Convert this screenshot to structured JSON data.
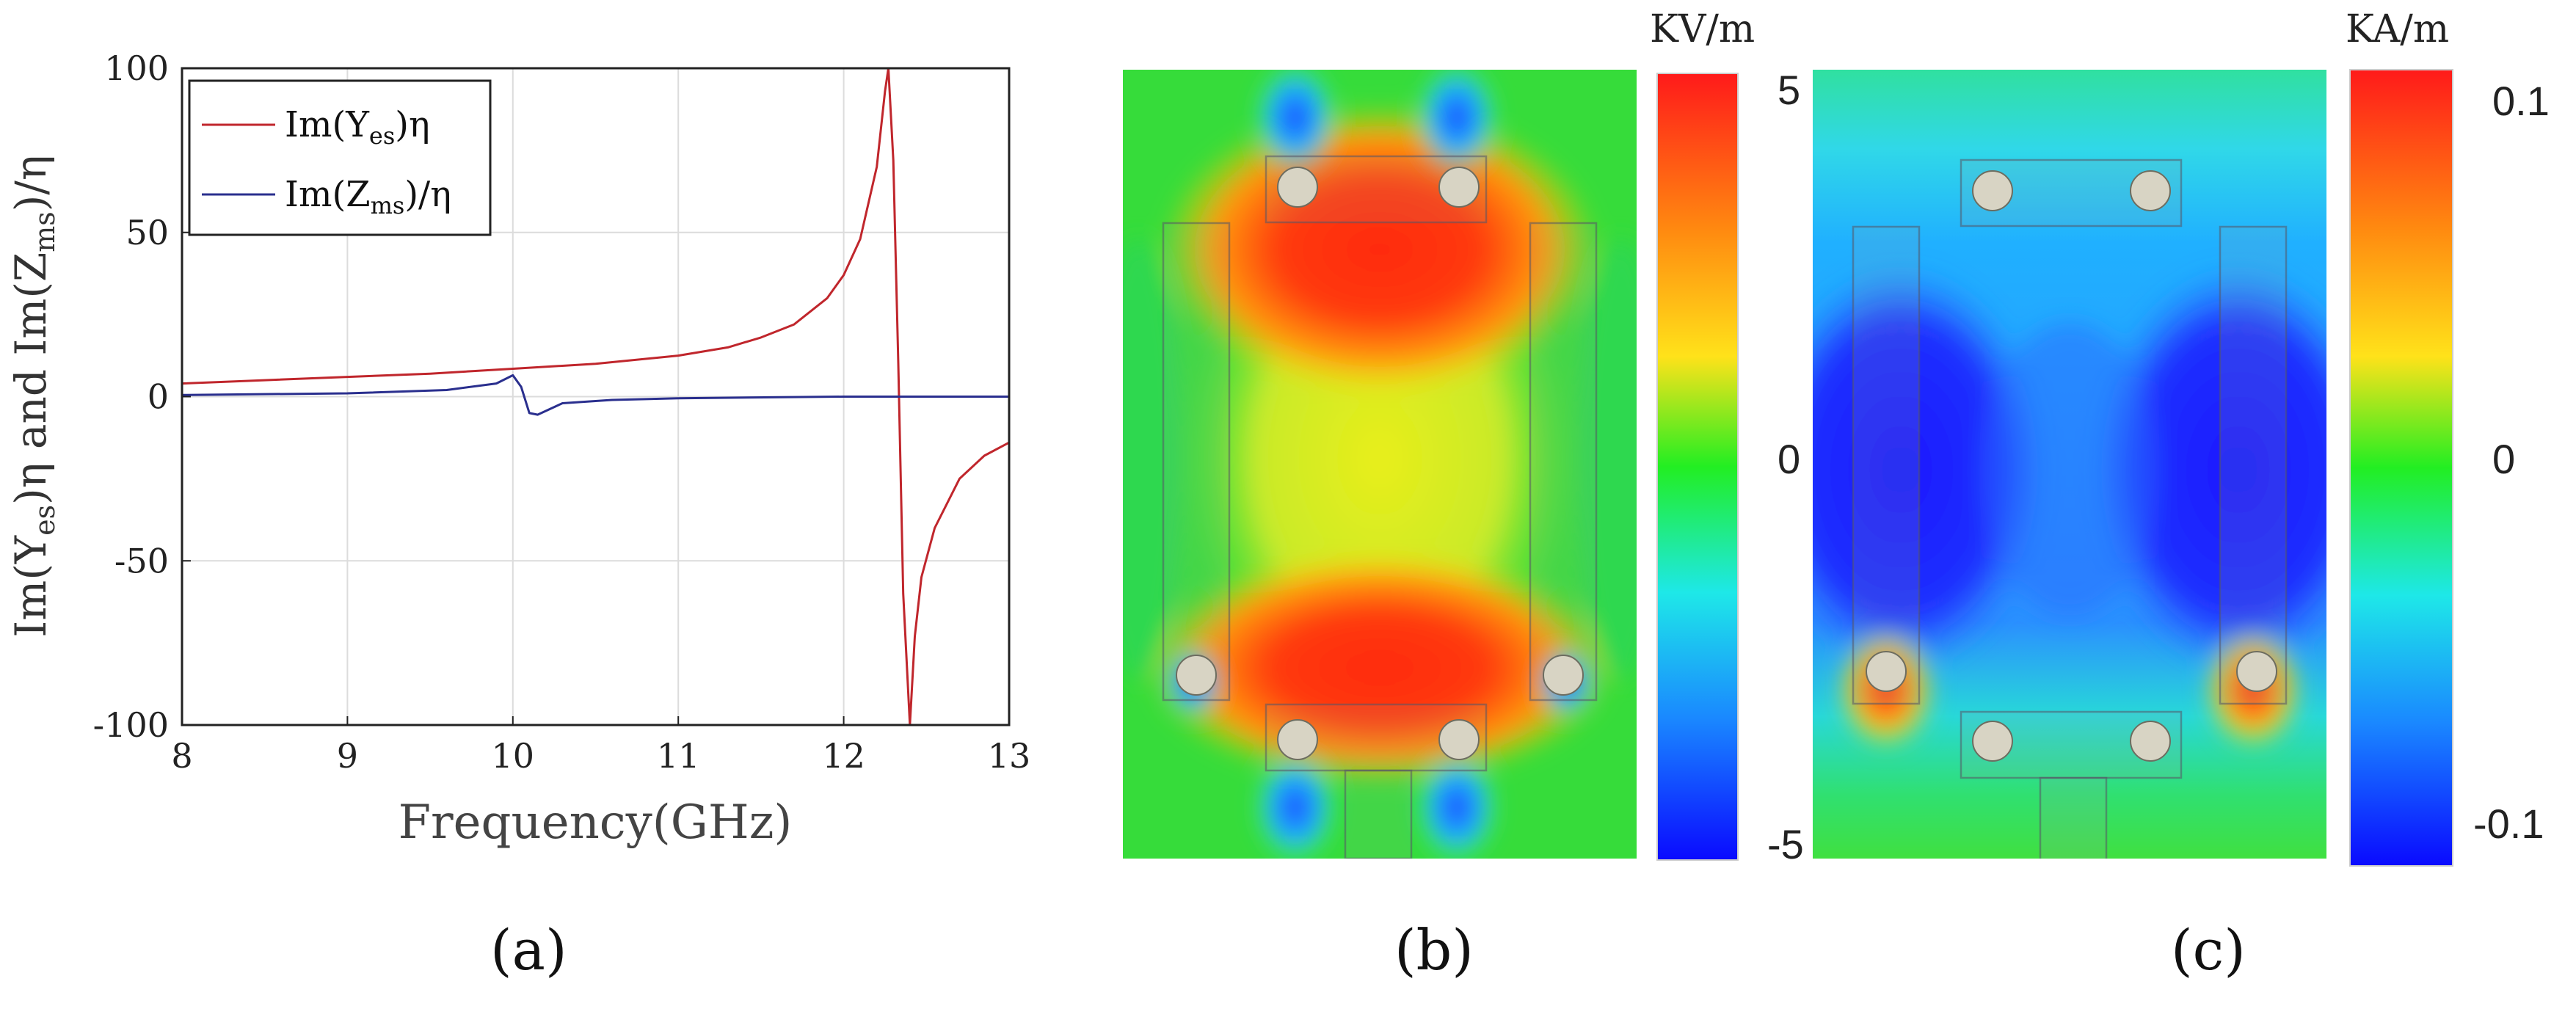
{
  "chart_data": [
    {
      "panel": "a",
      "type": "line",
      "title": "",
      "xlabel": "Frequency(GHz)",
      "ylabel": {
        "a": "Im(Y",
        "a_sub": "es",
        "b": ")η and Im(Z",
        "b_sub": "ms",
        "c": ")/η"
      },
      "xlim": [
        8,
        13
      ],
      "ylim": [
        -100,
        100
      ],
      "xticks": [
        "8",
        "9",
        "10",
        "11",
        "12",
        "13"
      ],
      "yticks": [
        "100",
        "50",
        "0",
        "-50",
        "-100"
      ],
      "xtick_values": [
        8,
        9,
        10,
        11,
        12,
        13
      ],
      "ytick_values": [
        100,
        50,
        0,
        -50,
        -100
      ],
      "grid": true,
      "legend_position": "top-left",
      "series": [
        {
          "name": "Im(Y_es)η",
          "legend": {
            "pre": "Im(Y",
            "sub": "es",
            "post": ")η"
          },
          "color": "#c0262c",
          "x": [
            8,
            8.5,
            9,
            9.5,
            10,
            10.5,
            11,
            11.3,
            11.5,
            11.7,
            11.9,
            12.0,
            12.1,
            12.2,
            12.25,
            12.27,
            12.3,
            12.33,
            12.36,
            12.4,
            12.43,
            12.47,
            12.55,
            12.7,
            12.85,
            13
          ],
          "values": [
            4,
            5,
            6,
            7,
            8.5,
            10,
            12.5,
            15,
            18,
            22,
            30,
            37,
            48,
            70,
            93,
            100,
            72,
            10,
            -60,
            -100,
            -73,
            -55,
            -40,
            -25,
            -18,
            -14
          ]
        },
        {
          "name": "Im(Z_ms)/η",
          "legend": {
            "pre": "Im(Z",
            "sub": "ms",
            "post": ")/η"
          },
          "color": "#2a2f8e",
          "x": [
            8,
            9,
            9.6,
            9.9,
            10.0,
            10.05,
            10.1,
            10.15,
            10.3,
            10.6,
            11,
            12,
            13
          ],
          "values": [
            0.5,
            1,
            2,
            4,
            6.5,
            3,
            -5,
            -5.5,
            -2,
            -1,
            -0.5,
            0,
            0
          ]
        }
      ]
    },
    {
      "panel": "b",
      "type": "heatmap",
      "quantity": "electric field",
      "colorbar": {
        "unit": "KV/m",
        "max": "5",
        "mid": "0",
        "min": "-5",
        "values": [
          5,
          0,
          -5
        ]
      }
    },
    {
      "panel": "c",
      "type": "heatmap",
      "quantity": "magnetic field",
      "colorbar": {
        "unit": "KA/m",
        "max": "0.1",
        "mid": "0",
        "min": "-0.1",
        "values": [
          0.1,
          0,
          -0.1
        ]
      }
    }
  ],
  "labels": {
    "a": "(a)",
    "b": "(b)",
    "c": "(c)"
  }
}
